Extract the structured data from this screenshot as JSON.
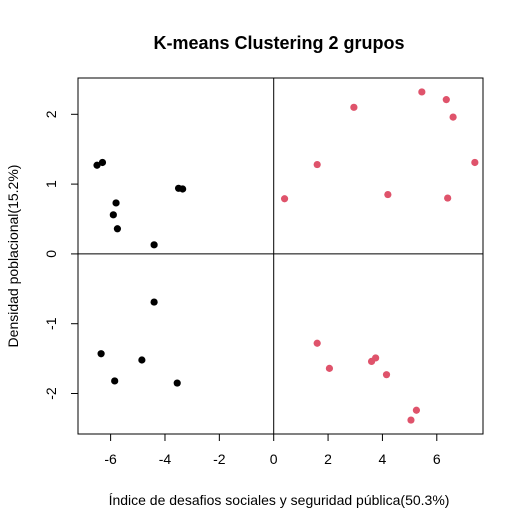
{
  "chart_data": {
    "type": "scatter",
    "title": "K-means Clustering 2 grupos",
    "xlabel": "Índice de desafios sociales y seguridad pública(50.3%)",
    "ylabel": "Densidad poblacional(15.2%)",
    "xlim": [
      -7.2,
      7.7
    ],
    "ylim": [
      -2.58,
      2.52
    ],
    "xticks": [
      -6,
      -4,
      -2,
      0,
      2,
      4,
      6
    ],
    "yticks": [
      -2,
      -1,
      0,
      1,
      2
    ],
    "reference_lines": {
      "x": 0,
      "y": 0
    },
    "grid": false,
    "series": [
      {
        "color": "#000000",
        "points": [
          [
            -6.5,
            1.27
          ],
          [
            -6.3,
            1.31
          ],
          [
            -5.8,
            0.73
          ],
          [
            -5.9,
            0.56
          ],
          [
            -5.75,
            0.36
          ],
          [
            -3.5,
            0.94
          ],
          [
            -3.35,
            0.93
          ],
          [
            -4.4,
            0.13
          ],
          [
            -4.4,
            -0.69
          ],
          [
            -6.35,
            -1.43
          ],
          [
            -4.85,
            -1.52
          ],
          [
            -5.85,
            -1.82
          ],
          [
            -3.55,
            -1.85
          ]
        ]
      },
      {
        "color": "#DF536B",
        "points": [
          [
            5.45,
            2.32
          ],
          [
            6.35,
            2.21
          ],
          [
            2.95,
            2.1
          ],
          [
            6.6,
            1.96
          ],
          [
            7.4,
            1.31
          ],
          [
            1.6,
            1.28
          ],
          [
            4.2,
            0.85
          ],
          [
            6.4,
            0.8
          ],
          [
            0.4,
            0.79
          ],
          [
            1.6,
            -1.28
          ],
          [
            2.05,
            -1.64
          ],
          [
            3.6,
            -1.54
          ],
          [
            3.75,
            -1.49
          ],
          [
            4.15,
            -1.73
          ],
          [
            5.25,
            -2.24
          ],
          [
            5.05,
            -2.38
          ]
        ]
      }
    ]
  }
}
